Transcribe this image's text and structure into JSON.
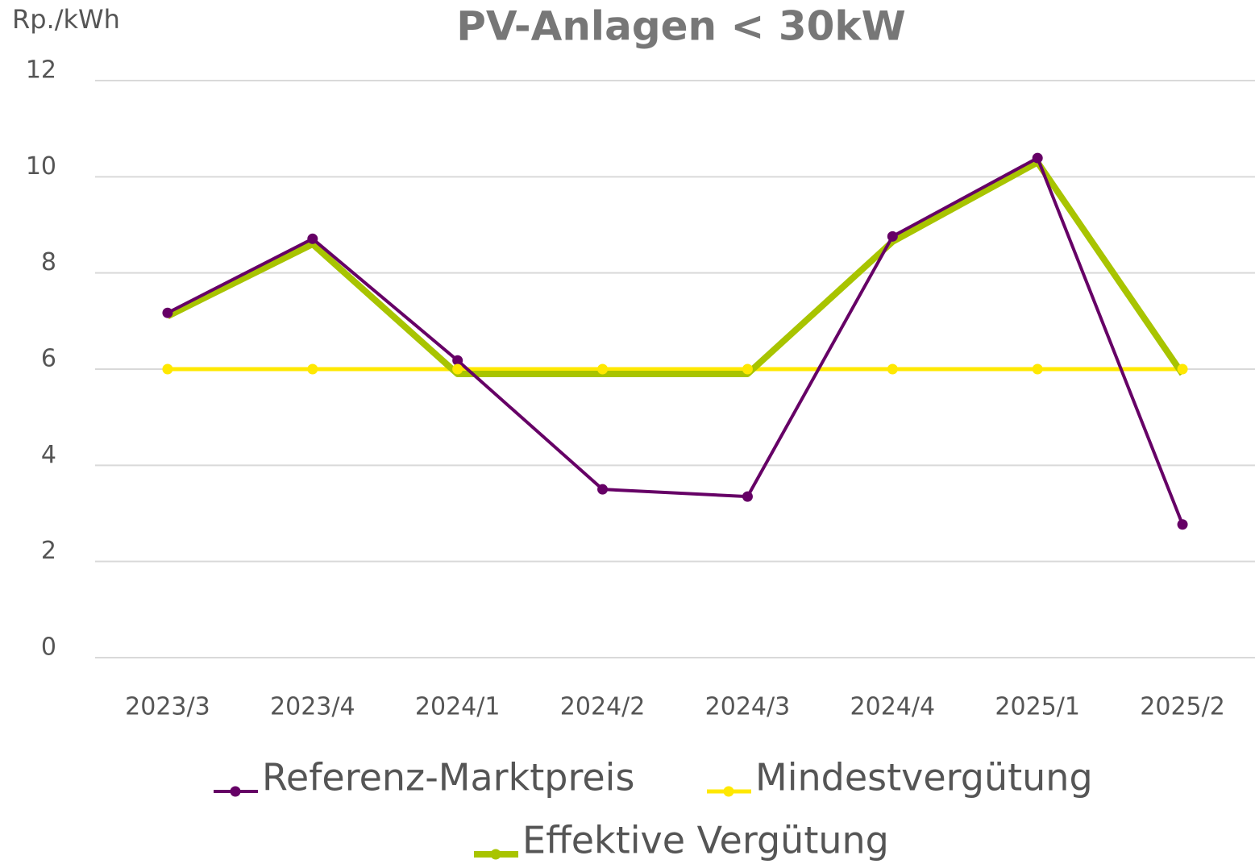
{
  "chart_data": {
    "type": "line",
    "title": "PV-Anlagen < 30kW",
    "y_label": "Rp./kWh",
    "categories": [
      "2023/3",
      "2023/4",
      "2024/1",
      "2024/2",
      "2024/3",
      "2024/4",
      "2025/1",
      "2025/2"
    ],
    "series": [
      {
        "name": "Referenz-Marktpreis",
        "color": "#660066",
        "marker": true,
        "values": [
          7.17,
          8.71,
          6.18,
          3.5,
          3.35,
          8.76,
          10.39,
          2.77
        ]
      },
      {
        "name": "Mindestvergütung",
        "color": "#ffe800",
        "marker": true,
        "values": [
          6,
          6,
          6,
          6,
          6,
          6,
          6,
          6
        ]
      },
      {
        "name": "Effektive Vergütung",
        "color": "#a8c400",
        "marker": false,
        "values": [
          7.1,
          8.6,
          5.9,
          5.9,
          5.9,
          8.65,
          10.3,
          5.9
        ]
      }
    ],
    "ylim": [
      0,
      12
    ],
    "yticks": [
      0,
      2,
      4,
      6,
      8,
      10,
      12
    ],
    "grid": true,
    "legend": "bottom"
  }
}
